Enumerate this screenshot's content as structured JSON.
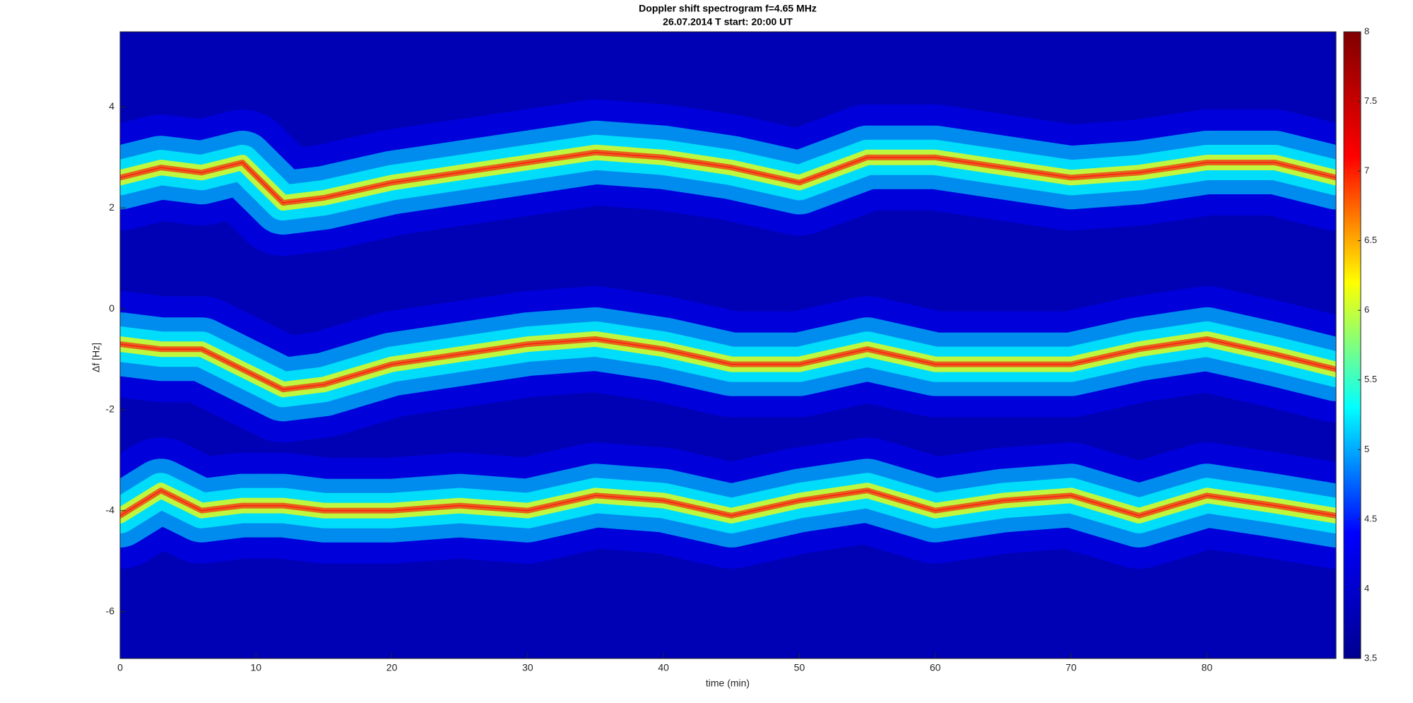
{
  "chart_data": {
    "type": "spectrogram",
    "title": "Doppler shift spectrogram f=4.65 MHz",
    "subtitle": "26.07.2014    T start: 20:00 UT",
    "xlabel": "time (min)",
    "ylabel": "Δf [Hz]",
    "x": [
      0,
      3,
      6,
      9,
      12,
      15,
      20,
      25,
      30,
      35,
      40,
      45,
      50,
      55,
      60,
      65,
      70,
      75,
      80,
      85,
      89.5
    ],
    "series": [
      {
        "color": "#ff1a1a",
        "values": [
          2.6,
          2.8,
          2.7,
          2.9,
          2.1,
          2.2,
          2.5,
          2.7,
          2.9,
          3.1,
          3.0,
          2.8,
          2.5,
          3.0,
          3.0,
          2.8,
          2.6,
          2.7,
          2.9,
          2.9,
          2.6
        ]
      },
      {
        "color": "#ff1a1a",
        "values": [
          -0.7,
          -0.8,
          -0.8,
          -1.2,
          -1.6,
          -1.5,
          -1.1,
          -0.9,
          -0.7,
          -0.6,
          -0.8,
          -1.1,
          -1.1,
          -0.8,
          -1.1,
          -1.1,
          -1.1,
          -0.8,
          -0.6,
          -0.9,
          -1.2
        ]
      },
      {
        "color": "#ff1a1a",
        "values": [
          -4.1,
          -3.6,
          -4.0,
          -3.9,
          -3.9,
          -4.0,
          -4.0,
          -3.9,
          -4.0,
          -3.7,
          -3.8,
          -4.1,
          -3.8,
          -3.6,
          -4.0,
          -3.8,
          -3.7,
          -4.1,
          -3.7,
          -3.9,
          -4.1
        ]
      }
    ],
    "xlim": [
      0,
      89.5
    ],
    "xticks": [
      0,
      10,
      20,
      30,
      40,
      50,
      60,
      70,
      80
    ],
    "ylim": [
      -6.93,
      5.49
    ],
    "yticks": [
      -6,
      -4,
      -2,
      0,
      2,
      4
    ],
    "background_color": "#0000b4",
    "colormap": [
      "#00008f",
      "#0000ff",
      "#00ffff",
      "#ffff00",
      "#ff0000",
      "#800000"
    ],
    "clim": [
      3.5,
      8
    ],
    "cticks": [
      3.5,
      4,
      4.5,
      5,
      5.5,
      6,
      6.5,
      7,
      7.5,
      8
    ]
  }
}
